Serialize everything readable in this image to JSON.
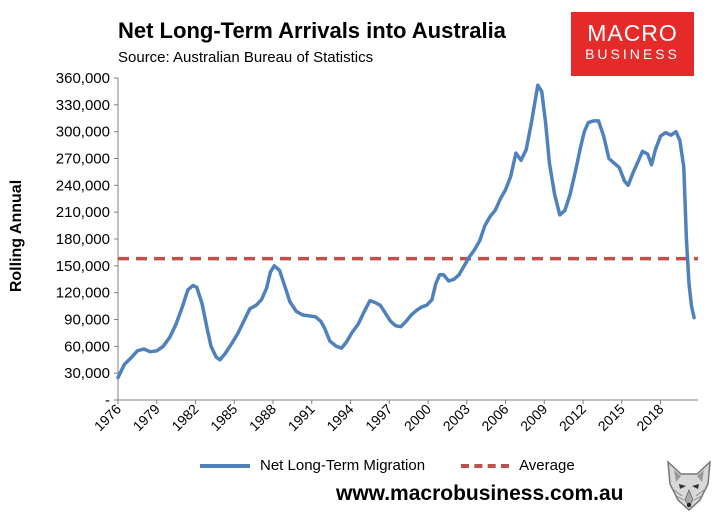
{
  "title": "Net Long-Term Arrivals into Australia",
  "subtitle": "Source: Australian Bureau of Statistics",
  "logo": {
    "line1": "MACRO",
    "line2": "BUSINESS"
  },
  "url": "www.macrobusiness.com.au",
  "colors": {
    "series": "#4f81bd",
    "average": "#c0504d",
    "logo_bg": "#e52a2a"
  },
  "chart_data": {
    "type": "line",
    "title": "Net Long-Term Arrivals into Australia",
    "subtitle": "Source: Australian Bureau of Statistics",
    "ylabel": "Rolling Annual",
    "xlabel": "",
    "ylim": [
      0,
      360000
    ],
    "xlim": [
      1976,
      2020.9
    ],
    "y_ticks": [
      0,
      30000,
      60000,
      90000,
      120000,
      150000,
      180000,
      210000,
      240000,
      270000,
      300000,
      330000,
      360000
    ],
    "y_tick_labels": [
      "-",
      "30,000",
      "60,000",
      "90,000",
      "120,000",
      "150,000",
      "180,000",
      "210,000",
      "240,000",
      "270,000",
      "300,000",
      "330,000",
      "360,000"
    ],
    "x_ticks": [
      1976,
      1979,
      1982,
      1985,
      1988,
      1991,
      1994,
      1997,
      2000,
      2003,
      2006,
      2009,
      2012,
      2015,
      2018
    ],
    "x_tick_labels": [
      "1976",
      "1979",
      "1982",
      "1985",
      "1988",
      "1991",
      "1994",
      "1997",
      "2000",
      "2003",
      "2006",
      "2009",
      "2012",
      "2015",
      "2018"
    ],
    "grid": false,
    "legend_position": "bottom",
    "series": [
      {
        "name": "Net Long-Term Migration",
        "color": "#4f81bd",
        "points": [
          [
            1976.0,
            25000
          ],
          [
            1976.5,
            40000
          ],
          [
            1977.0,
            47000
          ],
          [
            1977.5,
            55000
          ],
          [
            1978.0,
            57000
          ],
          [
            1978.5,
            54000
          ],
          [
            1979.0,
            55000
          ],
          [
            1979.5,
            60000
          ],
          [
            1980.0,
            70000
          ],
          [
            1980.5,
            85000
          ],
          [
            1981.0,
            105000
          ],
          [
            1981.4,
            123000
          ],
          [
            1981.8,
            128000
          ],
          [
            1982.1,
            126000
          ],
          [
            1982.5,
            108000
          ],
          [
            1982.9,
            80000
          ],
          [
            1983.2,
            60000
          ],
          [
            1983.6,
            48000
          ],
          [
            1983.9,
            45000
          ],
          [
            1984.3,
            52000
          ],
          [
            1984.8,
            63000
          ],
          [
            1985.3,
            75000
          ],
          [
            1985.8,
            90000
          ],
          [
            1986.2,
            102000
          ],
          [
            1986.7,
            106000
          ],
          [
            1987.1,
            112000
          ],
          [
            1987.5,
            125000
          ],
          [
            1987.8,
            143000
          ],
          [
            1988.1,
            150000
          ],
          [
            1988.5,
            145000
          ],
          [
            1988.9,
            128000
          ],
          [
            1989.3,
            110000
          ],
          [
            1989.8,
            99000
          ],
          [
            1990.3,
            95000
          ],
          [
            1990.8,
            94000
          ],
          [
            1991.3,
            93000
          ],
          [
            1991.7,
            88000
          ],
          [
            1992.0,
            80000
          ],
          [
            1992.4,
            66000
          ],
          [
            1992.9,
            60000
          ],
          [
            1993.3,
            58000
          ],
          [
            1993.7,
            65000
          ],
          [
            1994.1,
            75000
          ],
          [
            1994.6,
            85000
          ],
          [
            1995.0,
            97000
          ],
          [
            1995.5,
            111000
          ],
          [
            1995.9,
            109000
          ],
          [
            1996.3,
            106000
          ],
          [
            1996.7,
            97000
          ],
          [
            1997.1,
            88000
          ],
          [
            1997.5,
            83000
          ],
          [
            1997.9,
            82000
          ],
          [
            1998.3,
            88000
          ],
          [
            1998.7,
            95000
          ],
          [
            1999.1,
            100000
          ],
          [
            1999.5,
            104000
          ],
          [
            1999.9,
            106000
          ],
          [
            2000.3,
            112000
          ],
          [
            2000.6,
            130000
          ],
          [
            2000.9,
            140000
          ],
          [
            2001.2,
            140000
          ],
          [
            2001.6,
            133000
          ],
          [
            2002.0,
            135000
          ],
          [
            2002.4,
            140000
          ],
          [
            2002.8,
            150000
          ],
          [
            2003.2,
            160000
          ],
          [
            2003.6,
            168000
          ],
          [
            2004.0,
            178000
          ],
          [
            2004.4,
            195000
          ],
          [
            2004.8,
            205000
          ],
          [
            2005.2,
            212000
          ],
          [
            2005.6,
            225000
          ],
          [
            2006.0,
            235000
          ],
          [
            2006.4,
            250000
          ],
          [
            2006.8,
            276000
          ],
          [
            2007.2,
            268000
          ],
          [
            2007.6,
            280000
          ],
          [
            2008.0,
            310000
          ],
          [
            2008.3,
            335000
          ],
          [
            2008.5,
            352000
          ],
          [
            2008.8,
            345000
          ],
          [
            2009.1,
            310000
          ],
          [
            2009.4,
            265000
          ],
          [
            2009.8,
            230000
          ],
          [
            2010.2,
            207000
          ],
          [
            2010.6,
            212000
          ],
          [
            2011.0,
            230000
          ],
          [
            2011.4,
            255000
          ],
          [
            2011.8,
            282000
          ],
          [
            2012.1,
            300000
          ],
          [
            2012.4,
            310000
          ],
          [
            2012.8,
            312000
          ],
          [
            2013.2,
            312000
          ],
          [
            2013.6,
            295000
          ],
          [
            2014.0,
            270000
          ],
          [
            2014.4,
            265000
          ],
          [
            2014.8,
            260000
          ],
          [
            2015.2,
            245000
          ],
          [
            2015.5,
            240000
          ],
          [
            2015.9,
            255000
          ],
          [
            2016.3,
            268000
          ],
          [
            2016.6,
            278000
          ],
          [
            2017.0,
            275000
          ],
          [
            2017.3,
            263000
          ],
          [
            2017.6,
            280000
          ],
          [
            2018.0,
            295000
          ],
          [
            2018.4,
            299000
          ],
          [
            2018.8,
            296000
          ],
          [
            2019.2,
            300000
          ],
          [
            2019.5,
            290000
          ],
          [
            2019.8,
            260000
          ],
          [
            2020.0,
            180000
          ],
          [
            2020.2,
            130000
          ],
          [
            2020.4,
            105000
          ],
          [
            2020.6,
            92000
          ]
        ]
      },
      {
        "name": "Average",
        "color": "#c0504d",
        "style": "dashed",
        "constant": 158000
      }
    ]
  }
}
